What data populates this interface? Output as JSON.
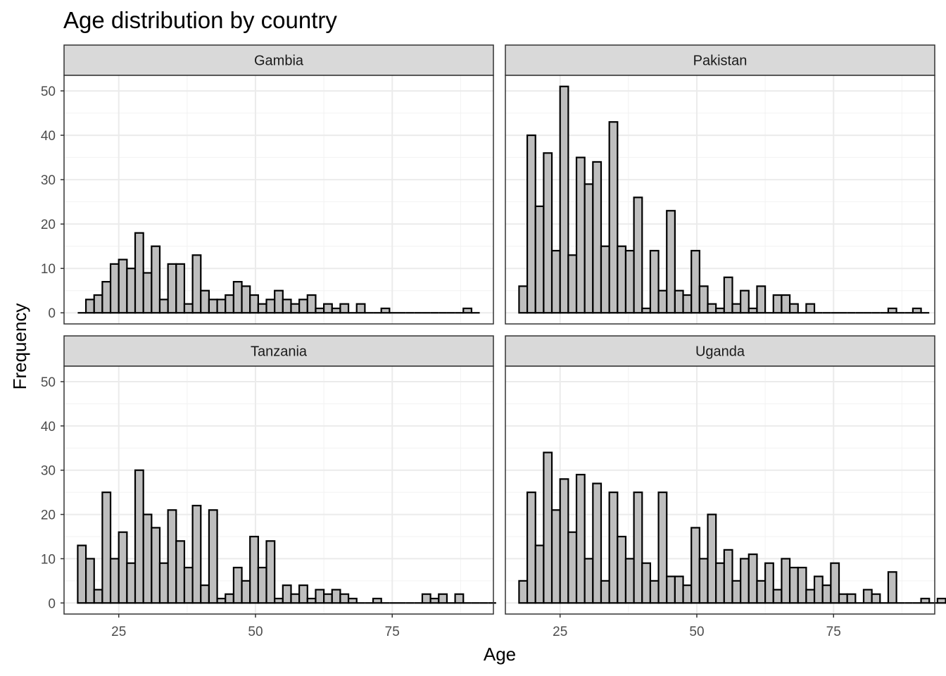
{
  "chart_data": {
    "type": "bar",
    "subtype": "faceted-histogram",
    "title": "Age distribution by country",
    "xlabel": "Age",
    "ylabel": "Frequency",
    "xlim": [
      15,
      93.5
    ],
    "ylim": [
      -2.5,
      53.5
    ],
    "x_ticks": [
      25,
      50,
      75
    ],
    "y_ticks": [
      0,
      10,
      20,
      30,
      40,
      50
    ],
    "grid": true,
    "bin_start": 17.5,
    "bin_width": 1.5,
    "bar_fill": "#bebebe",
    "bar_outline": "#000000",
    "strip_fill": "#d9d9d9",
    "facets": [
      {
        "name": "Gambia",
        "counts": [
          0,
          3,
          4,
          7,
          11,
          12,
          10,
          18,
          9,
          15,
          3,
          11,
          11,
          2,
          13,
          5,
          3,
          3,
          4,
          7,
          6,
          4,
          2,
          3,
          5,
          3,
          2,
          3,
          4,
          1,
          2,
          1,
          2,
          0,
          2,
          0,
          0,
          1,
          0,
          0,
          0,
          0,
          0,
          0,
          0,
          0,
          0,
          1,
          0
        ]
      },
      {
        "name": "Pakistan",
        "counts": [
          6,
          40,
          24,
          36,
          14,
          51,
          13,
          35,
          29,
          34,
          15,
          43,
          15,
          14,
          26,
          1,
          14,
          5,
          23,
          5,
          4,
          14,
          6,
          2,
          1,
          8,
          2,
          5,
          1,
          6,
          0,
          4,
          4,
          2,
          0,
          2,
          0,
          0,
          0,
          0,
          0,
          0,
          0,
          0,
          0,
          1,
          0,
          0,
          1,
          0
        ]
      },
      {
        "name": "Tanzania",
        "counts": [
          13,
          10,
          3,
          25,
          10,
          16,
          9,
          30,
          20,
          17,
          9,
          21,
          14,
          8,
          22,
          4,
          21,
          1,
          2,
          8,
          5,
          15,
          8,
          14,
          1,
          4,
          2,
          4,
          1,
          3,
          2,
          3,
          2,
          1,
          0,
          0,
          1,
          0,
          0,
          0,
          0,
          0,
          2,
          1,
          2,
          0,
          2,
          0,
          0,
          0,
          0
        ]
      },
      {
        "name": "Uganda",
        "counts": [
          5,
          25,
          13,
          34,
          21,
          28,
          16,
          29,
          10,
          27,
          5,
          25,
          15,
          10,
          25,
          9,
          5,
          25,
          6,
          6,
          4,
          17,
          10,
          20,
          9,
          12,
          5,
          10,
          11,
          5,
          9,
          3,
          10,
          8,
          8,
          3,
          6,
          4,
          9,
          2,
          2,
          0,
          3,
          2,
          0,
          7,
          0,
          0,
          0,
          1,
          0,
          1,
          0,
          1,
          0
        ]
      }
    ]
  }
}
